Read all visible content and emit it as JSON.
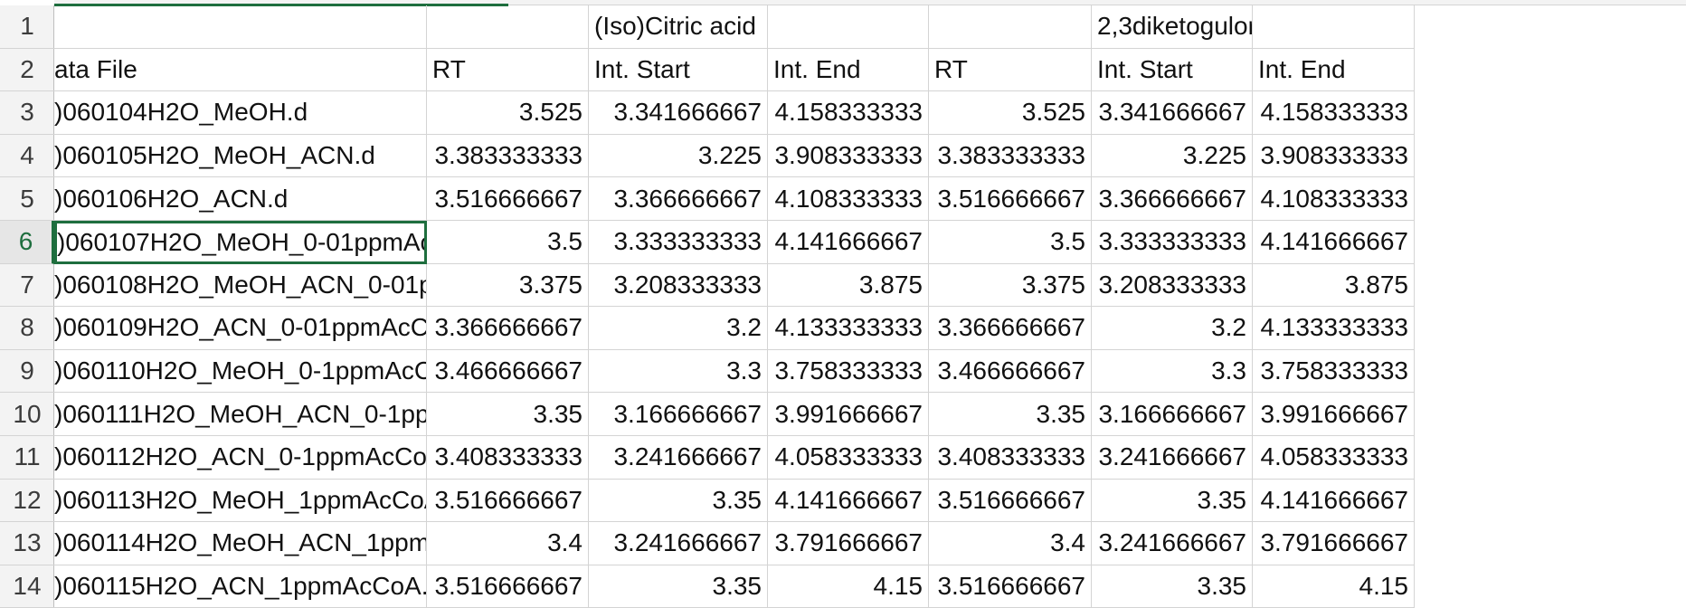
{
  "row_numbers": [
    "1",
    "2",
    "3",
    "4",
    "5",
    "6",
    "7",
    "8",
    "9",
    "10",
    "11",
    "12",
    "13",
    "14"
  ],
  "selected_row": "6",
  "rows": [
    [
      "",
      "",
      "(Iso)Citric acid",
      "",
      "",
      "2,3diketogulor",
      ""
    ],
    [
      "ata File",
      "RT",
      "Int. Start",
      "Int. End",
      "RT",
      "Int. Start",
      "Int. End"
    ],
    [
      ")060104H2O_MeOH.d",
      "3.525",
      "3.341666667",
      "4.158333333",
      "3.525",
      "3.341666667",
      "4.158333333"
    ],
    [
      ")060105H2O_MeOH_ACN.d",
      "3.383333333",
      "3.225",
      "3.908333333",
      "3.383333333",
      "3.225",
      "3.908333333"
    ],
    [
      ")060106H2O_ACN.d",
      "3.516666667",
      "3.366666667",
      "4.108333333",
      "3.516666667",
      "3.366666667",
      "4.108333333"
    ],
    [
      ")060107H2O_MeOH_0-01ppmAc(",
      "3.5",
      "3.333333333",
      "4.141666667",
      "3.5",
      "3.333333333",
      "4.141666667"
    ],
    [
      ")060108H2O_MeOH_ACN_0-01pp",
      "3.375",
      "3.208333333",
      "3.875",
      "3.375",
      "3.208333333",
      "3.875"
    ],
    [
      ")060109H2O_ACN_0-01ppmAcCo/",
      "3.366666667",
      "3.2",
      "4.133333333",
      "3.366666667",
      "3.2",
      "4.133333333"
    ],
    [
      ")060110H2O_MeOH_0-1ppmAcCo",
      "3.466666667",
      "3.3",
      "3.758333333",
      "3.466666667",
      "3.3",
      "3.758333333"
    ],
    [
      ")060111H2O_MeOH_ACN_0-1ppr",
      "3.35",
      "3.166666667",
      "3.991666667",
      "3.35",
      "3.166666667",
      "3.991666667"
    ],
    [
      ")060112H2O_ACN_0-1ppmAcCoA",
      "3.408333333",
      "3.241666667",
      "4.058333333",
      "3.408333333",
      "3.241666667",
      "4.058333333"
    ],
    [
      ")060113H2O_MeOH_1ppmAcCoA",
      "3.516666667",
      "3.35",
      "4.141666667",
      "3.516666667",
      "3.35",
      "4.141666667"
    ],
    [
      ")060114H2O_MeOH_ACN_1ppmA",
      "3.4",
      "3.241666667",
      "3.791666667",
      "3.4",
      "3.241666667",
      "3.791666667"
    ],
    [
      ")060115H2O_ACN_1ppmAcCoA.d",
      "3.516666667",
      "3.35",
      "4.15",
      "3.516666667",
      "3.35",
      "4.15"
    ]
  ]
}
